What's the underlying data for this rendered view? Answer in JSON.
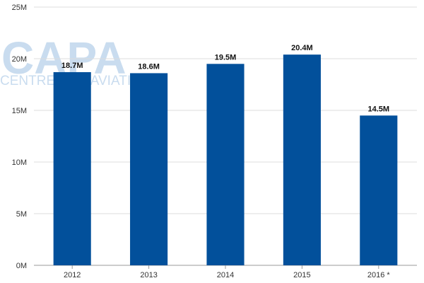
{
  "chart_data": {
    "type": "bar",
    "categories": [
      "2012",
      "2013",
      "2014",
      "2015",
      "2016 *"
    ],
    "values": [
      18.7,
      18.6,
      19.5,
      20.4,
      14.5
    ],
    "value_labels": [
      "18.7M",
      "18.6M",
      "19.5M",
      "20.4M",
      "14.5M"
    ],
    "y_ticks": [
      0,
      5,
      10,
      15,
      20,
      25
    ],
    "y_tick_labels": [
      "0M",
      "5M",
      "10M",
      "15M",
      "20M",
      "25M"
    ],
    "ylim": [
      0,
      25
    ],
    "grid": true,
    "legend": "none",
    "bar_color": "#02509b"
  },
  "watermark": {
    "line1": "CAPA",
    "line2": "CENTRE FOR AVIATION"
  }
}
